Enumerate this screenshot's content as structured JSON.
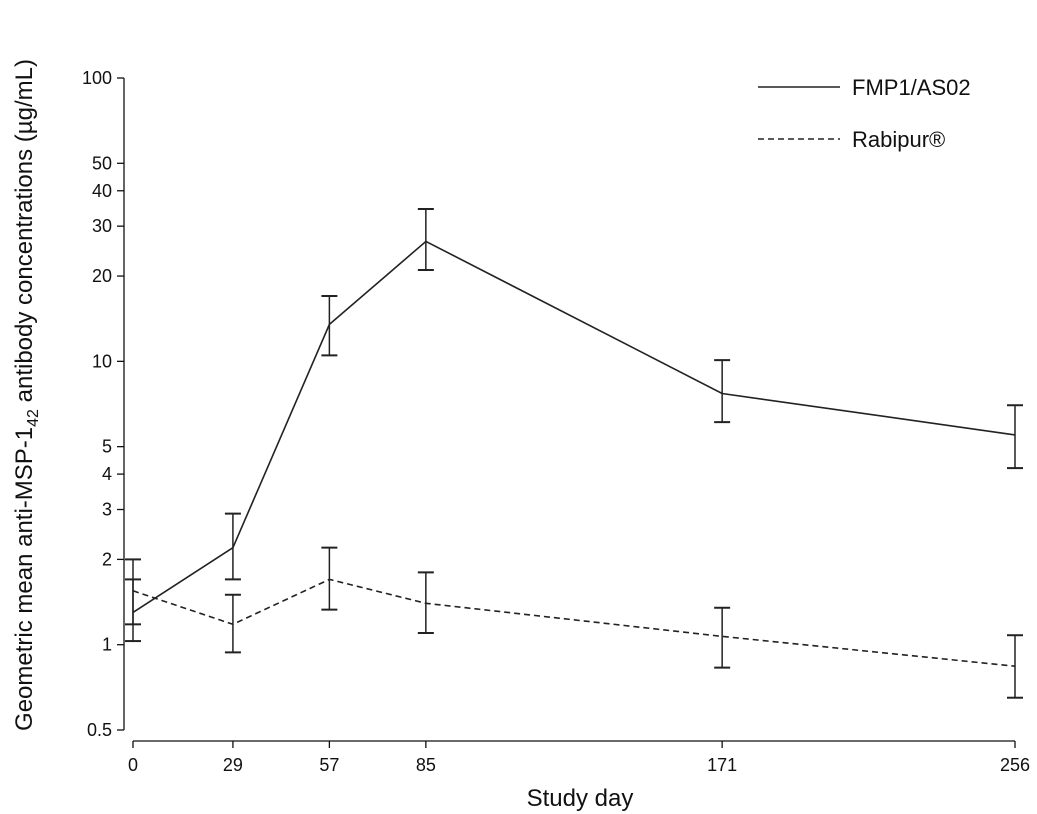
{
  "chart_data": {
    "type": "line",
    "title": "",
    "xlabel": "Study day",
    "ylabel": {
      "main": "Geometric mean anti-MSP-1",
      "sub": "42",
      "rest": " antibody concentrations (µg/mL)"
    },
    "x": [
      0,
      29,
      57,
      85,
      171,
      256
    ],
    "x_ticks": [
      "0",
      "29",
      "57",
      "85",
      "171",
      "256"
    ],
    "y_scale": "log",
    "ylim": [
      0.5,
      100
    ],
    "y_ticks": [
      {
        "value": 0.5,
        "label": "0.5"
      },
      {
        "value": 1,
        "label": "1"
      },
      {
        "value": 2,
        "label": "2"
      },
      {
        "value": 3,
        "label": "3"
      },
      {
        "value": 4,
        "label": "4"
      },
      {
        "value": 5,
        "label": "5"
      },
      {
        "value": 10,
        "label": "10"
      },
      {
        "value": 20,
        "label": "20"
      },
      {
        "value": 30,
        "label": "30"
      },
      {
        "value": 40,
        "label": "40"
      },
      {
        "value": 50,
        "label": "50"
      },
      {
        "value": 100,
        "label": "100"
      }
    ],
    "grid": false,
    "legend_position": "top-right",
    "series": [
      {
        "name": "FMP1/AS02",
        "style": "solid",
        "color": "#222222",
        "values": [
          1.3,
          2.2,
          13.5,
          26.5,
          7.7,
          5.5
        ],
        "error_low": [
          1.03,
          1.7,
          10.5,
          21.0,
          6.1,
          4.2
        ],
        "error_high": [
          1.7,
          2.9,
          17.0,
          34.5,
          10.1,
          7.0
        ]
      },
      {
        "name": "Rabipur®",
        "style": "dashed",
        "color": "#222222",
        "values": [
          1.55,
          1.18,
          1.7,
          1.4,
          1.07,
          0.84
        ],
        "error_low": [
          1.18,
          0.94,
          1.33,
          1.1,
          0.83,
          0.65
        ],
        "error_high": [
          2.0,
          1.5,
          2.2,
          1.8,
          1.35,
          1.08
        ]
      }
    ]
  }
}
